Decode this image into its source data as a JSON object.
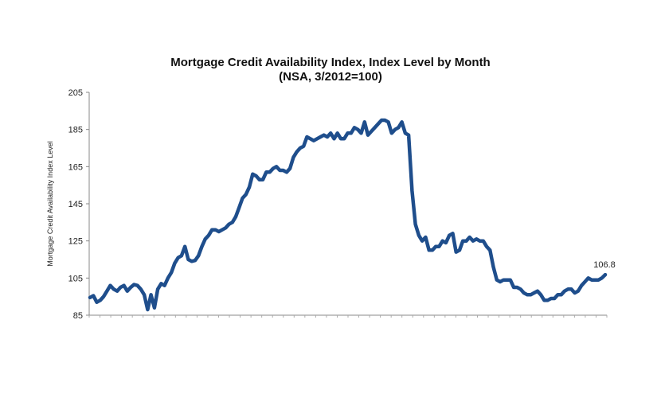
{
  "chart_data": {
    "type": "line",
    "title": "Mortgage Credit Availability Index, Index Level by Month",
    "subtitle": "(NSA, 3/2012=100)",
    "ylabel": "Mortgage Credit Availability Index Level",
    "xlabel": "",
    "ylim": [
      85,
      205
    ],
    "yticks": [
      85,
      105,
      125,
      145,
      165,
      185,
      205
    ],
    "grid": false,
    "line_color": "#1f4e8c",
    "end_label": "106.8",
    "series": [
      {
        "values": [
          94.5,
          95.5,
          92,
          93,
          95,
          98,
          101,
          99,
          98,
          100,
          101,
          98,
          100,
          101.5,
          101,
          99,
          96,
          88,
          96,
          89,
          99,
          102,
          101,
          105,
          108,
          113,
          116,
          117,
          122,
          115,
          114,
          114.5,
          117,
          122,
          126,
          128,
          131,
          131,
          130,
          131,
          132,
          134,
          135,
          138,
          143,
          148,
          150,
          154,
          161,
          160,
          158,
          158,
          162,
          162,
          164,
          165,
          163,
          163,
          162,
          164,
          170,
          173,
          175,
          176,
          181,
          180,
          179,
          180,
          181,
          182,
          181,
          183,
          180,
          183,
          180,
          180,
          183,
          183,
          186,
          185,
          183,
          189,
          182,
          184,
          186,
          188,
          190,
          190,
          189,
          183,
          185,
          186,
          189,
          183,
          182,
          152,
          134,
          128,
          125,
          127,
          120,
          120,
          122,
          122,
          125,
          124,
          128,
          129,
          119,
          120,
          125,
          125,
          127,
          125,
          126,
          125,
          125,
          122,
          120,
          111,
          104,
          103,
          104,
          104,
          104,
          100,
          100,
          99,
          97,
          96,
          96,
          97,
          98,
          96,
          93,
          93,
          94,
          94,
          96,
          96,
          98,
          99,
          99,
          97,
          98,
          101,
          103,
          105,
          104,
          104,
          104,
          105,
          106.8
        ]
      }
    ]
  }
}
